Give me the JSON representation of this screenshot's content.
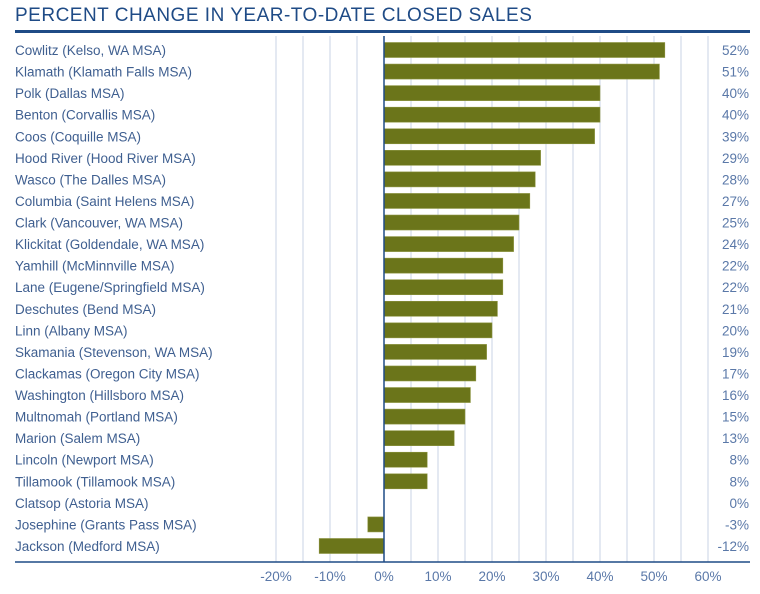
{
  "chart_data": {
    "type": "bar",
    "orientation": "horizontal",
    "title": "PERCENT CHANGE IN YEAR-TO-DATE CLOSED SALES",
    "categories": [
      "Cowlitz (Kelso, WA MSA)",
      "Klamath (Klamath Falls MSA)",
      "Polk (Dallas MSA)",
      "Benton (Corvallis MSA)",
      "Coos (Coquille MSA)",
      "Hood River (Hood River MSA)",
      "Wasco (The Dalles MSA)",
      "Columbia (Saint Helens MSA)",
      "Clark (Vancouver, WA MSA)",
      "Klickitat (Goldendale, WA MSA)",
      "Yamhill (McMinnville MSA)",
      "Lane (Eugene/Springfield MSA)",
      "Deschutes (Bend MSA)",
      "Linn (Albany MSA)",
      "Skamania (Stevenson, WA MSA)",
      "Clackamas (Oregon City MSA)",
      "Washington (Hillsboro MSA)",
      "Multnomah (Portland MSA)",
      "Marion (Salem MSA)",
      "Lincoln (Newport MSA)",
      "Tillamook (Tillamook MSA)",
      "Clatsop (Astoria MSA)",
      "Josephine (Grants Pass MSA)",
      "Jackson (Medford MSA)"
    ],
    "values": [
      52,
      51,
      40,
      40,
      39,
      29,
      28,
      27,
      25,
      24,
      22,
      22,
      21,
      20,
      19,
      17,
      16,
      15,
      13,
      8,
      8,
      0,
      -3,
      -12
    ],
    "value_labels": [
      "52%",
      "51%",
      "40%",
      "40%",
      "39%",
      "29%",
      "28%",
      "27%",
      "25%",
      "24%",
      "22%",
      "22%",
      "21%",
      "20%",
      "19%",
      "17%",
      "16%",
      "15%",
      "13%",
      "8%",
      "8%",
      "0%",
      "-3%",
      "-12%"
    ],
    "xlim": [
      -20,
      60
    ],
    "xticks": [
      "-20%",
      "-10%",
      "0%",
      "10%",
      "20%",
      "30%",
      "40%",
      "50%",
      "60%"
    ],
    "xtick_values": [
      -20,
      -10,
      0,
      10,
      20,
      30,
      40,
      50,
      60
    ],
    "grid_step": 5,
    "grid": true,
    "bar_color": "#6b751a",
    "accent_color": "#1f4b86"
  }
}
